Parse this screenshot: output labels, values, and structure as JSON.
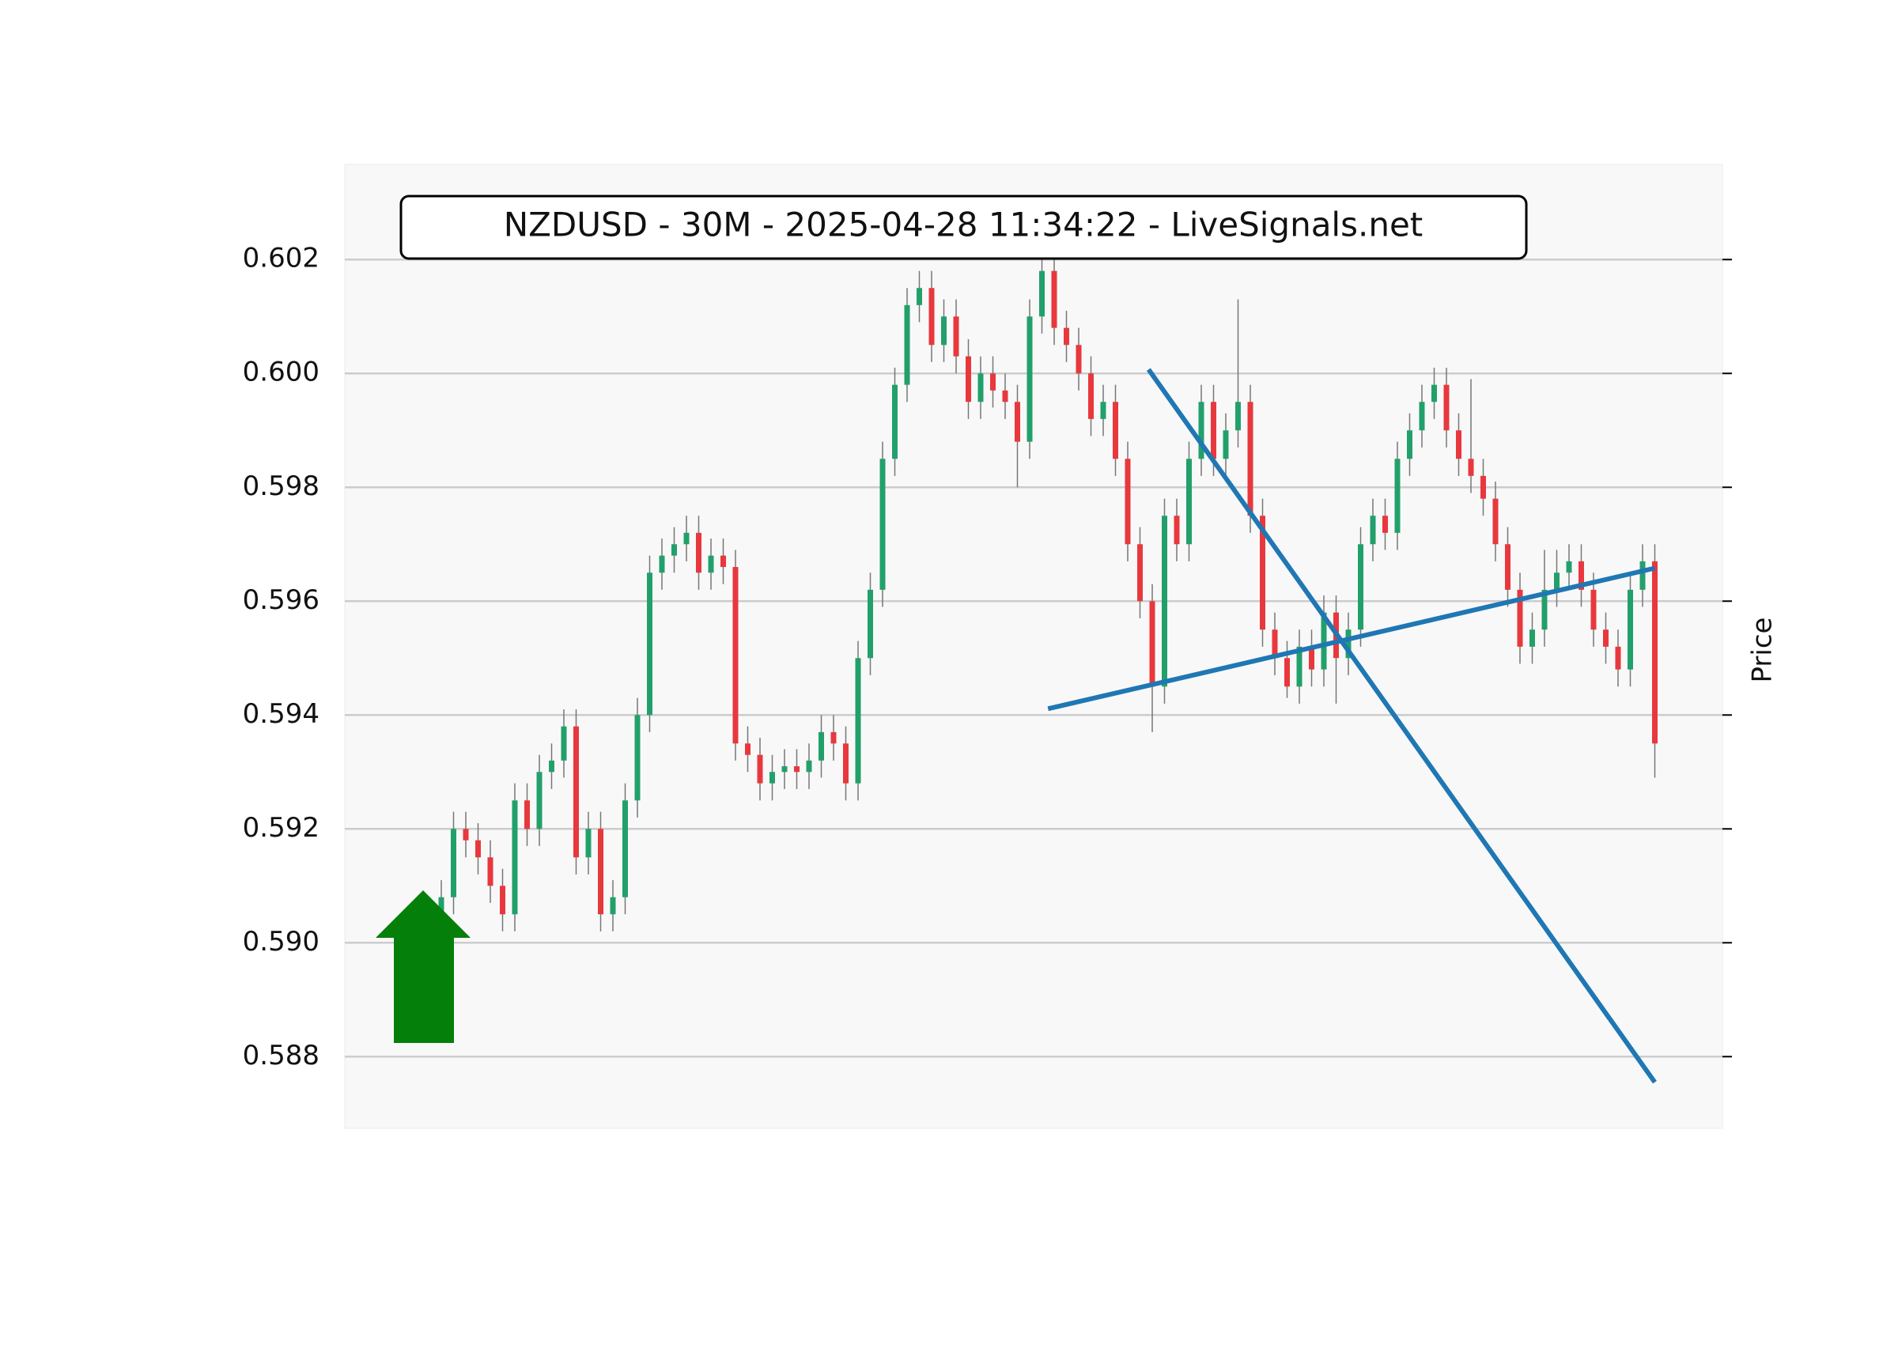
{
  "chart_data": {
    "type": "candlestick",
    "title": "NZDUSD - 30M - 2025-04-28 11:34:22 - LiveSignals.net",
    "y_label": "Price",
    "ylim": [
      0.58674,
      0.60367
    ],
    "yticks": [
      {
        "value": 0.588,
        "label": "0.588"
      },
      {
        "value": 0.59,
        "label": "0.590"
      },
      {
        "value": 0.592,
        "label": "0.592"
      },
      {
        "value": 0.594,
        "label": "0.594"
      },
      {
        "value": 0.596,
        "label": "0.596"
      },
      {
        "value": 0.598,
        "label": "0.598"
      },
      {
        "value": 0.6,
        "label": "0.600"
      },
      {
        "value": 0.602,
        "label": "0.602"
      }
    ],
    "grid": true,
    "up_color": "#22a06b",
    "down_color": "#e8383d",
    "open": [
      0.5903,
      0.5908,
      0.592,
      0.5918,
      0.5915,
      0.591,
      0.5905,
      0.5925,
      0.592,
      0.593,
      0.5932,
      0.5938,
      0.5915,
      0.592,
      0.5905,
      0.5908,
      0.5925,
      0.594,
      0.5965,
      0.5968,
      0.597,
      0.5972,
      0.5965,
      0.5968,
      0.5966,
      0.5935,
      0.5933,
      0.5928,
      0.593,
      0.5931,
      0.593,
      0.5932,
      0.5937,
      0.5935,
      0.5928,
      0.595,
      0.5962,
      0.5985,
      0.5998,
      0.6012,
      0.6015,
      0.6005,
      0.601,
      0.6003,
      0.5995,
      0.6,
      0.5997,
      0.5995,
      0.5988,
      0.601,
      0.6018,
      0.6008,
      0.6005,
      0.6,
      0.5992,
      0.5995,
      0.5985,
      0.597,
      0.596,
      0.5945,
      0.5975,
      0.597,
      0.5985,
      0.5995,
      0.5985,
      0.599,
      0.5995,
      0.5975,
      0.5955,
      0.595,
      0.5945,
      0.5952,
      0.5948,
      0.5958,
      0.595,
      0.5955,
      0.597,
      0.5975,
      0.5972,
      0.5985,
      0.599,
      0.5995,
      0.5998,
      0.599,
      0.5985,
      0.5982,
      0.5978,
      0.597,
      0.5962,
      0.5952,
      0.5955,
      0.5962,
      0.5965,
      0.5967,
      0.5962,
      0.5955,
      0.5952,
      0.5948,
      0.5962,
      0.5967
    ],
    "high": [
      0.5911,
      0.5923,
      0.5923,
      0.5921,
      0.5918,
      0.5913,
      0.5928,
      0.5928,
      0.5933,
      0.5935,
      0.5941,
      0.5941,
      0.5923,
      0.5923,
      0.5911,
      0.5928,
      0.5943,
      0.5968,
      0.5971,
      0.5973,
      0.5975,
      0.5975,
      0.5971,
      0.5971,
      0.5969,
      0.5938,
      0.5936,
      0.5933,
      0.5934,
      0.5934,
      0.5935,
      0.594,
      0.594,
      0.5938,
      0.5953,
      0.5965,
      0.5988,
      0.6001,
      0.6015,
      0.6018,
      0.6018,
      0.6013,
      0.6013,
      0.6006,
      0.6003,
      0.6003,
      0.6,
      0.5998,
      0.6013,
      0.6022,
      0.6021,
      0.6011,
      0.6008,
      0.6003,
      0.5998,
      0.5998,
      0.5988,
      0.5973,
      0.5963,
      0.5978,
      0.5978,
      0.5988,
      0.5998,
      0.5998,
      0.5993,
      0.6013,
      0.5998,
      0.5978,
      0.5958,
      0.5953,
      0.5955,
      0.5955,
      0.5961,
      0.5961,
      0.5958,
      0.5973,
      0.5978,
      0.5978,
      0.5988,
      0.5993,
      0.5998,
      0.6001,
      0.6001,
      0.5993,
      0.5999,
      0.5985,
      0.5981,
      0.5973,
      0.5965,
      0.5958,
      0.5969,
      0.5969,
      0.597,
      0.597,
      0.5965,
      0.5958,
      0.5955,
      0.5965,
      0.597,
      0.597
    ],
    "low": [
      0.59,
      0.5905,
      0.5915,
      0.5912,
      0.5907,
      0.5902,
      0.5902,
      0.5917,
      0.5917,
      0.5927,
      0.5929,
      0.5912,
      0.5912,
      0.5902,
      0.5902,
      0.5905,
      0.5922,
      0.5937,
      0.5962,
      0.5965,
      0.5967,
      0.5962,
      0.5962,
      0.5963,
      0.5932,
      0.593,
      0.5925,
      0.5925,
      0.5927,
      0.5927,
      0.5927,
      0.5929,
      0.5932,
      0.5925,
      0.5925,
      0.5947,
      0.5959,
      0.5982,
      0.5995,
      0.6009,
      0.6002,
      0.6002,
      0.6,
      0.5992,
      0.5992,
      0.5994,
      0.5992,
      0.598,
      0.5985,
      0.6007,
      0.6005,
      0.6002,
      0.5997,
      0.5989,
      0.5989,
      0.5982,
      0.5967,
      0.5957,
      0.5937,
      0.5942,
      0.5967,
      0.5967,
      0.5982,
      0.5982,
      0.5982,
      0.5987,
      0.5972,
      0.5952,
      0.5947,
      0.5943,
      0.5942,
      0.5945,
      0.5945,
      0.5942,
      0.5947,
      0.5952,
      0.5967,
      0.5969,
      0.5969,
      0.5982,
      0.5987,
      0.5992,
      0.5987,
      0.5982,
      0.5979,
      0.5975,
      0.5967,
      0.5959,
      0.5949,
      0.5949,
      0.5952,
      0.5959,
      0.5962,
      0.5959,
      0.5952,
      0.5949,
      0.5945,
      0.5945,
      0.5959,
      0.5929
    ],
    "close": [
      0.5908,
      0.592,
      0.5918,
      0.5915,
      0.591,
      0.5905,
      0.5925,
      0.592,
      0.593,
      0.5932,
      0.5938,
      0.5915,
      0.592,
      0.5905,
      0.5908,
      0.5925,
      0.594,
      0.5965,
      0.5968,
      0.597,
      0.5972,
      0.5965,
      0.5968,
      0.5966,
      0.5935,
      0.5933,
      0.5928,
      0.593,
      0.5931,
      0.593,
      0.5932,
      0.5937,
      0.5935,
      0.5928,
      0.595,
      0.5962,
      0.5985,
      0.5998,
      0.6012,
      0.6015,
      0.6005,
      0.601,
      0.6003,
      0.5995,
      0.6,
      0.5997,
      0.5995,
      0.5988,
      0.601,
      0.6018,
      0.6008,
      0.6005,
      0.6,
      0.5992,
      0.5995,
      0.5985,
      0.597,
      0.596,
      0.5945,
      0.5975,
      0.597,
      0.5985,
      0.5995,
      0.5985,
      0.599,
      0.5995,
      0.5975,
      0.5955,
      0.595,
      0.5945,
      0.5952,
      0.5948,
      0.5958,
      0.595,
      0.5955,
      0.597,
      0.5975,
      0.5972,
      0.5985,
      0.599,
      0.5995,
      0.5998,
      0.599,
      0.5985,
      0.5982,
      0.5978,
      0.597,
      0.5962,
      0.5952,
      0.5955,
      0.5962,
      0.5965,
      0.5967,
      0.5962,
      0.5955,
      0.5952,
      0.5948,
      0.5962,
      0.5967,
      0.5935
    ],
    "trendlines": [
      {
        "color": "#1f77b4",
        "x": [
          57.7,
          99
        ],
        "y": [
          0.60007,
          0.58755
        ]
      },
      {
        "color": "#1f77b4",
        "x": [
          49.5,
          99
        ],
        "y": [
          0.59411,
          0.59658
        ]
      }
    ]
  }
}
